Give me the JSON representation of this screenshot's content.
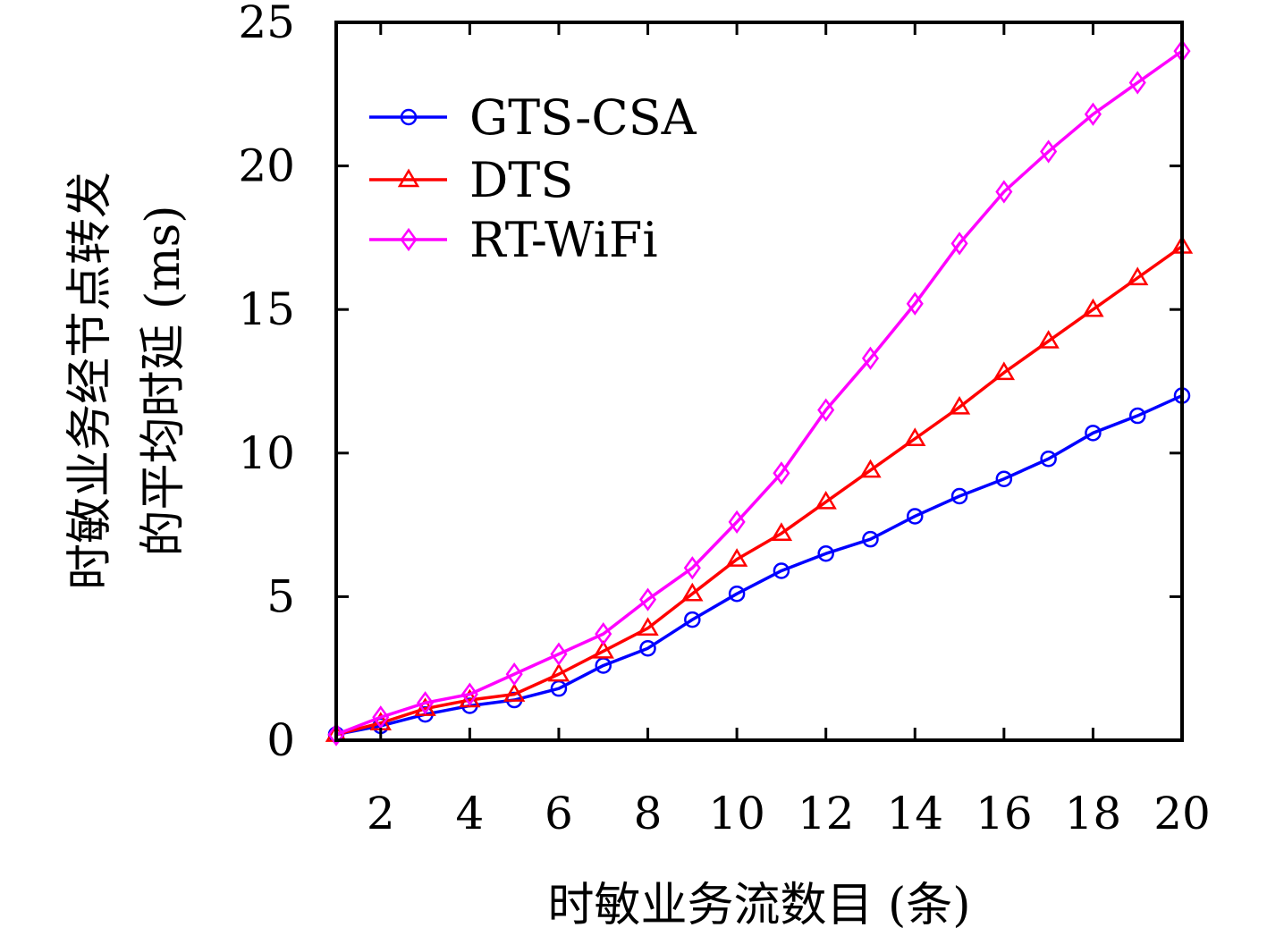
{
  "chart_data": {
    "type": "line",
    "xlabel": "时敏业务流数目 (条)",
    "ylabel_lines": [
      "时敏业务经节点转发",
      "的平均时延 (ms)"
    ],
    "xlim": [
      1,
      20
    ],
    "ylim": [
      0,
      25
    ],
    "xticks": [
      2,
      4,
      6,
      8,
      10,
      12,
      14,
      16,
      18,
      20
    ],
    "yticks": [
      0,
      5,
      10,
      15,
      20,
      25
    ],
    "grid": false,
    "legend_position": "top-left",
    "x": [
      1,
      2,
      3,
      4,
      5,
      6,
      7,
      8,
      9,
      10,
      11,
      12,
      13,
      14,
      15,
      16,
      17,
      18,
      19,
      20
    ],
    "series": [
      {
        "name": "GTS-CSA",
        "color": "#0000ff",
        "marker": "circle",
        "values": [
          0.2,
          0.5,
          0.9,
          1.2,
          1.4,
          1.8,
          2.6,
          3.2,
          4.2,
          5.1,
          5.9,
          6.5,
          7.0,
          7.8,
          8.5,
          9.1,
          9.8,
          10.7,
          11.3,
          12.0
        ]
      },
      {
        "name": "DTS",
        "color": "#ff0000",
        "marker": "triangle",
        "values": [
          0.2,
          0.6,
          1.1,
          1.4,
          1.6,
          2.3,
          3.1,
          3.9,
          5.1,
          6.3,
          7.2,
          8.3,
          9.4,
          10.5,
          11.6,
          12.8,
          13.9,
          15.0,
          16.1,
          17.2
        ]
      },
      {
        "name": "RT-WiFi",
        "color": "#ff00ff",
        "marker": "diamond",
        "values": [
          0.2,
          0.8,
          1.3,
          1.6,
          2.3,
          3.0,
          3.7,
          4.9,
          6.0,
          7.6,
          9.3,
          11.5,
          13.3,
          15.2,
          17.3,
          19.1,
          20.5,
          21.8,
          22.9,
          24.0
        ]
      }
    ]
  }
}
